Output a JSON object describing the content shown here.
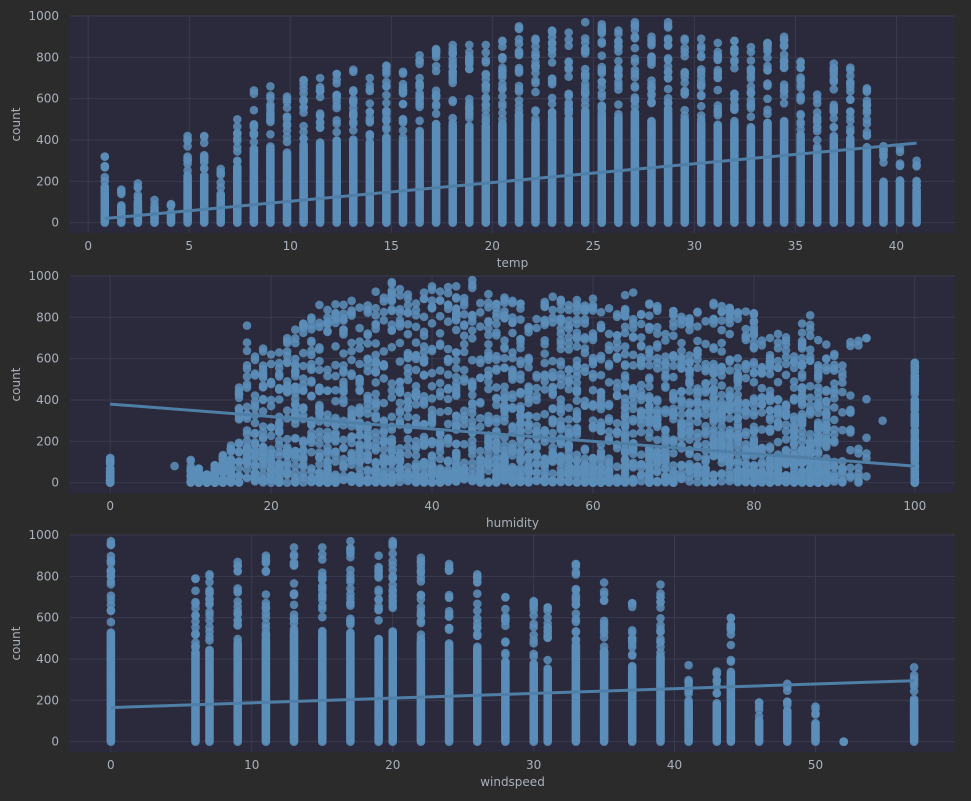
{
  "colors": {
    "figure_background": "#2b2b2b",
    "axes_background": "#2a2a3c",
    "grid": "#3a3b4e",
    "points": "#5b8db8",
    "regression_line": "#5b8db8",
    "tick_text": "#a9b1bc"
  },
  "chart_data": [
    {
      "type": "scatter",
      "title": "",
      "xlabel": "temp",
      "ylabel": "count",
      "xlim": [
        -0.9,
        42.9
      ],
      "ylim": [
        -50,
        1000
      ],
      "xticks": [
        0,
        5,
        10,
        15,
        20,
        25,
        30,
        35,
        40
      ],
      "yticks": [
        0,
        200,
        400,
        600,
        800,
        1000
      ],
      "grid": true,
      "regression": {
        "x": [
          0.82,
          41.0
        ],
        "y": [
          20,
          385
        ]
      },
      "x_levels": [
        0.82,
        1.64,
        2.46,
        3.28,
        4.1,
        4.92,
        5.74,
        6.56,
        7.38,
        8.2,
        9.02,
        9.84,
        10.66,
        11.48,
        12.3,
        13.12,
        13.94,
        14.76,
        15.58,
        16.4,
        17.22,
        18.04,
        18.86,
        19.68,
        20.5,
        21.32,
        22.14,
        22.96,
        23.78,
        24.6,
        25.42,
        26.24,
        27.06,
        27.88,
        28.7,
        29.52,
        30.34,
        31.16,
        31.98,
        32.8,
        33.62,
        34.44,
        35.26,
        36.08,
        36.9,
        37.72,
        38.54,
        39.36,
        40.18,
        41.0
      ],
      "y_max": [
        320,
        160,
        190,
        110,
        90,
        420,
        420,
        260,
        500,
        640,
        660,
        610,
        690,
        700,
        720,
        740,
        700,
        760,
        730,
        810,
        840,
        860,
        860,
        860,
        880,
        950,
        890,
        930,
        920,
        970,
        960,
        930,
        970,
        900,
        970,
        890,
        890,
        870,
        880,
        850,
        870,
        900,
        780,
        620,
        770,
        750,
        650,
        370,
        360,
        300
      ]
    },
    {
      "type": "scatter",
      "title": "",
      "xlabel": "humidity",
      "ylabel": "count",
      "xlim": [
        -5,
        105
      ],
      "ylim": [
        -50,
        1000
      ],
      "xticks": [
        0,
        20,
        40,
        60,
        80,
        100
      ],
      "yticks": [
        0,
        200,
        400,
        600,
        800,
        1000
      ],
      "grid": true,
      "regression": {
        "x": [
          0,
          100
        ],
        "y": [
          380,
          80
        ]
      },
      "y_max_profile": {
        "x": [
          0,
          8,
          10,
          12,
          15,
          17,
          20,
          23,
          26,
          30,
          35,
          40,
          43,
          45,
          50,
          55,
          60,
          65,
          70,
          75,
          80,
          83,
          87,
          88,
          92,
          94,
          96,
          100
        ],
        "y": [
          120,
          80,
          110,
          40,
          180,
          760,
          620,
          740,
          860,
          880,
          970,
          950,
          950,
          980,
          880,
          900,
          890,
          920,
          830,
          870,
          820,
          720,
          810,
          690,
          680,
          700,
          300,
          580
        ]
      }
    },
    {
      "type": "scatter",
      "title": "",
      "xlabel": "windspeed",
      "ylabel": "count",
      "xlim": [
        -2.9,
        59.9
      ],
      "ylim": [
        -50,
        1000
      ],
      "xticks": [
        0,
        10,
        20,
        30,
        40,
        50
      ],
      "yticks": [
        0,
        200,
        400,
        600,
        800,
        1000
      ],
      "grid": true,
      "regression": {
        "x": [
          0,
          57
        ],
        "y": [
          165,
          295
        ]
      },
      "x_levels": [
        0,
        6.0032,
        7.0015,
        8.9981,
        11.0014,
        12.998,
        15.0013,
        16.9979,
        19.0012,
        19.9995,
        22.0028,
        23.9994,
        26.0027,
        27.9993,
        30.0026,
        31.0009,
        32.9975,
        35.0008,
        36.9974,
        39.0007,
        40.9973,
        43.0006,
        43.9989,
        46.0022,
        47.9988,
        50.0021,
        51.9987,
        56.9969
      ],
      "y_max": [
        970,
        790,
        810,
        870,
        900,
        940,
        940,
        970,
        900,
        970,
        890,
        860,
        810,
        700,
        680,
        650,
        860,
        770,
        670,
        760,
        370,
        340,
        600,
        190,
        280,
        170,
        0,
        360
      ]
    }
  ]
}
